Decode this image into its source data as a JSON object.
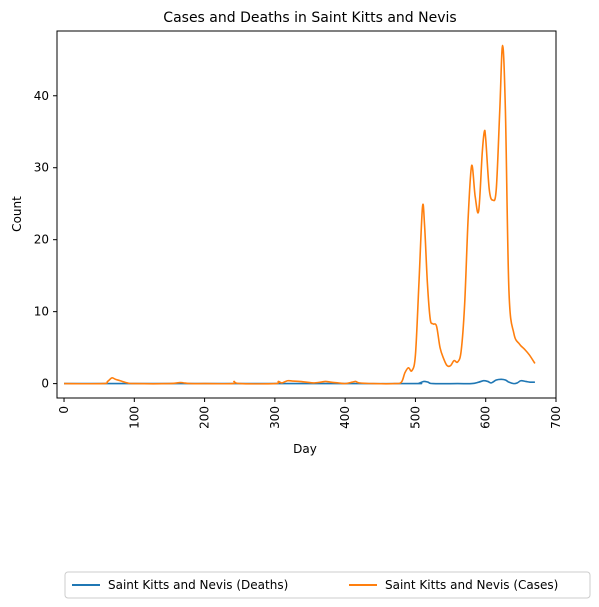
{
  "chart_data": {
    "type": "line",
    "title": "Cases and Deaths in Saint Kitts and Nevis",
    "xlabel": "Day",
    "ylabel": "Count",
    "xlim": [
      -10,
      700
    ],
    "ylim": [
      -2,
      49
    ],
    "x_ticks": [
      0,
      100,
      200,
      300,
      400,
      500,
      600,
      700
    ],
    "y_ticks": [
      0,
      10,
      20,
      30,
      40
    ],
    "legend_position": "bottom-center",
    "grid": false,
    "series": [
      {
        "name": "Saint Kitts and Nevis (Deaths)",
        "color": "#1f77b4",
        "x": [
          0,
          100,
          200,
          300,
          400,
          500,
          505,
          512,
          518,
          525,
          560,
          580,
          590,
          597,
          603,
          608,
          615,
          622,
          628,
          633,
          640,
          645,
          650,
          657,
          663,
          670
        ],
        "y": [
          0,
          0,
          0,
          0,
          0,
          0,
          0.05,
          0.3,
          0.2,
          0,
          0,
          0,
          0.2,
          0.4,
          0.3,
          0.1,
          0.5,
          0.6,
          0.5,
          0.2,
          0,
          0.1,
          0.4,
          0.3,
          0.2,
          0.2
        ]
      },
      {
        "name": "Saint Kitts and Nevis (Cases)",
        "color": "#ff7f0e",
        "x": [
          0,
          55,
          62,
          68,
          73,
          80,
          90,
          100,
          150,
          165,
          170,
          180,
          200,
          240,
          242,
          250,
          300,
          305,
          310,
          318,
          325,
          335,
          345,
          355,
          365,
          372,
          380,
          390,
          400,
          410,
          415,
          420,
          440,
          470,
          480,
          485,
          490,
          495,
          500,
          505,
          510,
          513,
          517,
          521,
          525,
          530,
          535,
          540,
          545,
          550,
          555,
          560,
          565,
          570,
          575,
          580,
          585,
          590,
          595,
          598,
          600,
          605,
          610,
          615,
          620,
          624,
          628,
          633,
          640,
          648,
          655,
          662,
          670
        ],
        "y": [
          0,
          0,
          0.3,
          0.8,
          0.6,
          0.4,
          0.1,
          0,
          0,
          0.15,
          0.1,
          0,
          0,
          0,
          0.3,
          0,
          0,
          0.3,
          0.1,
          0.4,
          0.35,
          0.3,
          0.2,
          0.1,
          0.2,
          0.3,
          0.2,
          0.1,
          0,
          0.2,
          0.3,
          0.1,
          0,
          0,
          0.2,
          1.5,
          2.2,
          1.8,
          4,
          14,
          24.5,
          22,
          14,
          9,
          8.3,
          8,
          5,
          3.5,
          2.5,
          2.5,
          3.2,
          3,
          4.5,
          11,
          23,
          30.3,
          26,
          24,
          32,
          35,
          34,
          27,
          25.5,
          27,
          38,
          47,
          38,
          13,
          7,
          5.5,
          4.8,
          4,
          2.8
        ]
      }
    ]
  }
}
